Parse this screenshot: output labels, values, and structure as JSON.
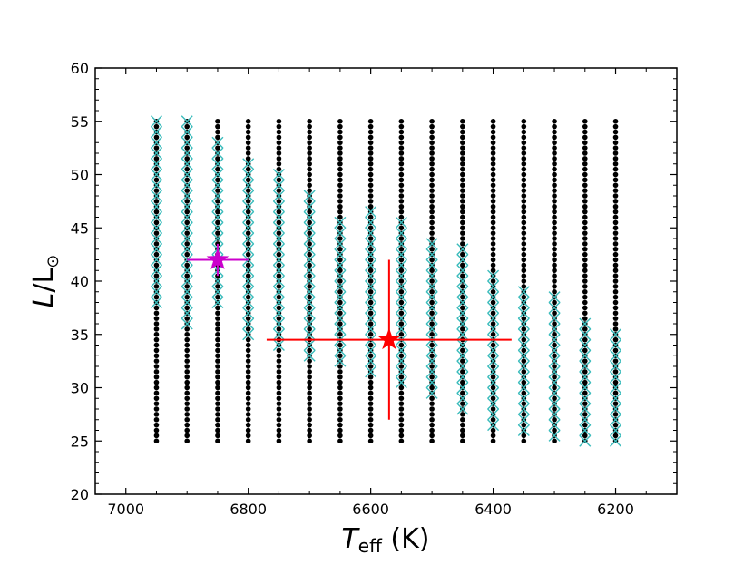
{
  "chart_data": {
    "type": "scatter",
    "title": "",
    "xlabel": {
      "main": "T",
      "sub": "eff",
      "unit": " (K)"
    },
    "ylabel": {
      "main": "L",
      "sep": "/L",
      "sun": "⊙"
    },
    "xlim": [
      7050,
      6100
    ],
    "ylim": [
      20,
      60
    ],
    "xticks": [
      7000,
      6800,
      6600,
      6400,
      6200
    ],
    "xtick_labels": [
      "7000",
      "6800",
      "6600",
      "6400",
      "6200"
    ],
    "yticks": [
      20,
      25,
      30,
      35,
      40,
      45,
      50,
      55,
      60
    ],
    "ytick_labels": [
      "20",
      "25",
      "30",
      "35",
      "40",
      "45",
      "50",
      "55",
      "60"
    ],
    "grid": false,
    "grid_points": {
      "name": "model grid",
      "color": "#000000",
      "marker": "dot",
      "teff": [
        6950,
        6900,
        6850,
        6800,
        6750,
        6700,
        6650,
        6600,
        6550,
        6500,
        6450,
        6400,
        6350,
        6300,
        6250,
        6200
      ],
      "L_min": 25,
      "L_max": 55,
      "L_step": 0.5
    },
    "accepted_models": {
      "name": "accepted models",
      "color": "#3bbcbc",
      "marker": "x",
      "L_step": 1,
      "ranges": [
        {
          "teff": 6950,
          "L": [
            38,
            55
          ]
        },
        {
          "teff": 6900,
          "L": [
            36,
            55
          ]
        },
        {
          "teff": 6850,
          "L": [
            38,
            53
          ]
        },
        {
          "teff": 6800,
          "L": [
            35,
            51.5
          ]
        },
        {
          "teff": 6750,
          "L": [
            34,
            50
          ]
        },
        {
          "teff": 6700,
          "L": [
            33,
            48
          ]
        },
        {
          "teff": 6650,
          "L": [
            32.5,
            46
          ]
        },
        {
          "teff": 6600,
          "L": [
            31.5,
            47
          ]
        },
        {
          "teff": 6550,
          "L": [
            30.5,
            45.5
          ]
        },
        {
          "teff": 6500,
          "L": [
            29.5,
            44
          ]
        },
        {
          "teff": 6450,
          "L": [
            28,
            43
          ]
        },
        {
          "teff": 6400,
          "L": [
            26.5,
            40.5
          ]
        },
        {
          "teff": 6350,
          "L": [
            26,
            39
          ]
        },
        {
          "teff": 6300,
          "L": [
            25.5,
            38.5
          ]
        },
        {
          "teff": 6250,
          "L": [
            25,
            36
          ]
        },
        {
          "teff": 6200,
          "L": [
            25,
            35
          ]
        }
      ]
    },
    "stars": [
      {
        "name": "red star",
        "teff": 6570,
        "L": 34.5,
        "teff_err_low": 200,
        "teff_err_high": 200,
        "L_err_low": 7.5,
        "L_err_high": 7.5,
        "color": "#ff0000"
      },
      {
        "name": "magenta star",
        "teff": 6850,
        "L": 42,
        "teff_err_low": 50,
        "teff_err_high": 50,
        "L_err_low": 1.5,
        "L_err_high": 1.5,
        "color": "#cc00cc"
      }
    ]
  }
}
